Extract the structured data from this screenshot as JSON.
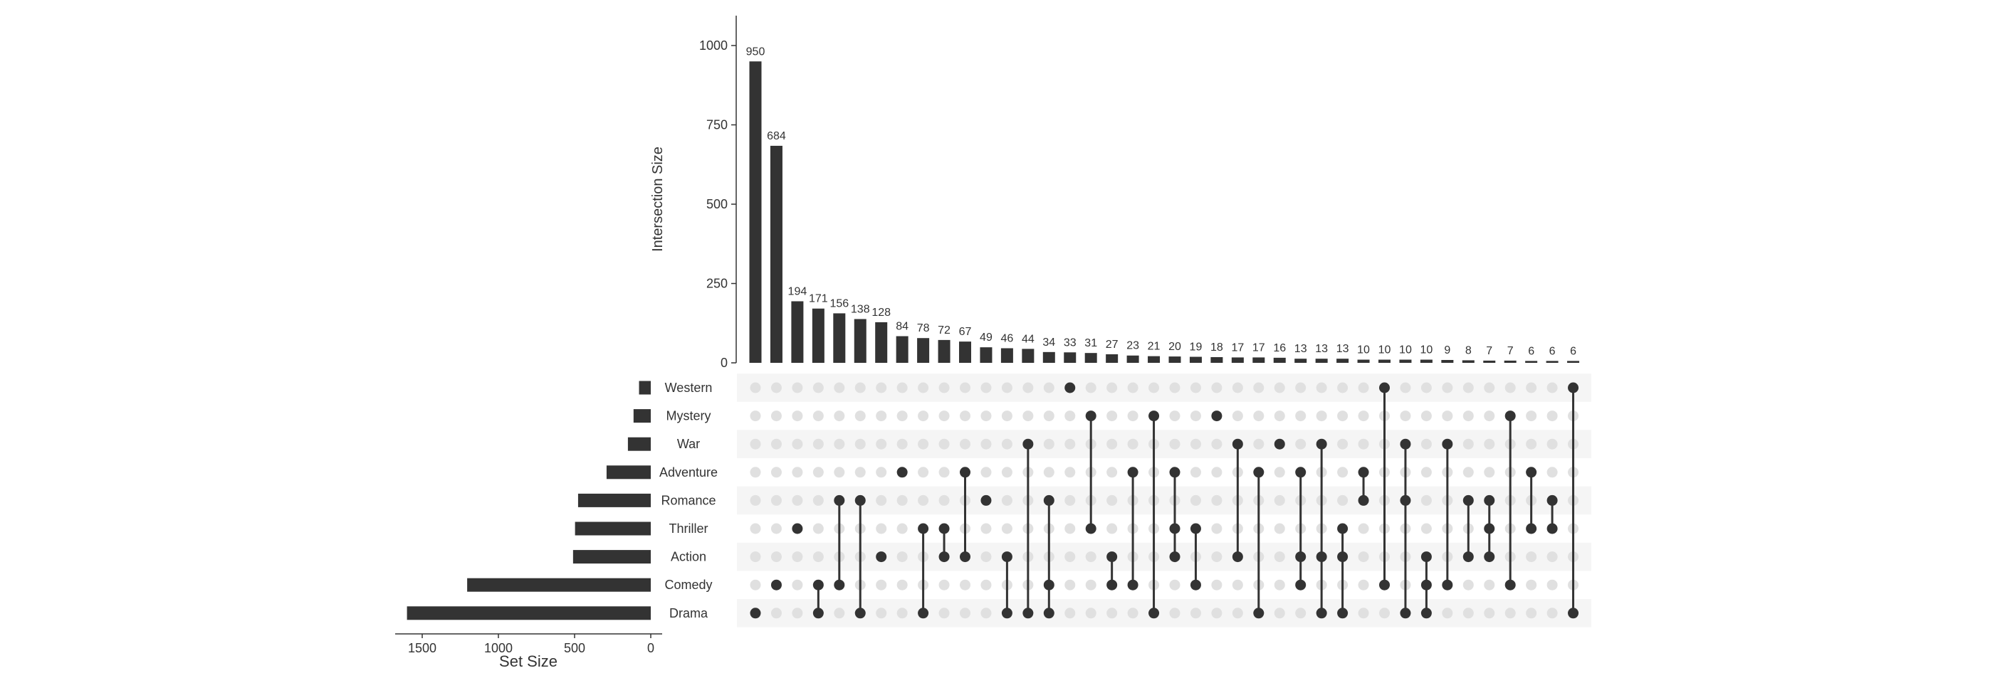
{
  "chart_data": {
    "type": "upset",
    "intersection_axis": {
      "label": "Intersection Size",
      "ticks": [
        0,
        250,
        500,
        750,
        1000
      ],
      "range": [
        0,
        1095
      ]
    },
    "set_axis": {
      "label": "Set Size",
      "ticks": [
        1500,
        1000,
        500,
        0
      ],
      "range": [
        0,
        1680
      ]
    },
    "sets": [
      "Western",
      "Mystery",
      "War",
      "Adventure",
      "Romance",
      "Thriller",
      "Action",
      "Comedy",
      "Drama"
    ],
    "set_sizes": [
      77,
      113,
      150,
      290,
      477,
      497,
      510,
      1205,
      1600
    ],
    "intersections": [
      {
        "sets": [
          "Drama"
        ],
        "size": 950
      },
      {
        "sets": [
          "Comedy"
        ],
        "size": 684
      },
      {
        "sets": [
          "Thriller"
        ],
        "size": 194
      },
      {
        "sets": [
          "Comedy",
          "Drama"
        ],
        "size": 171
      },
      {
        "sets": [
          "Romance",
          "Comedy"
        ],
        "size": 156
      },
      {
        "sets": [
          "Romance",
          "Drama"
        ],
        "size": 138
      },
      {
        "sets": [
          "Action"
        ],
        "size": 128
      },
      {
        "sets": [
          "Adventure"
        ],
        "size": 84
      },
      {
        "sets": [
          "Thriller",
          "Drama"
        ],
        "size": 78
      },
      {
        "sets": [
          "Thriller",
          "Action"
        ],
        "size": 72
      },
      {
        "sets": [
          "Adventure",
          "Action"
        ],
        "size": 67
      },
      {
        "sets": [
          "Romance"
        ],
        "size": 49
      },
      {
        "sets": [
          "Action",
          "Drama"
        ],
        "size": 46
      },
      {
        "sets": [
          "War",
          "Drama"
        ],
        "size": 44
      },
      {
        "sets": [
          "Romance",
          "Comedy",
          "Drama"
        ],
        "size": 34
      },
      {
        "sets": [
          "Western"
        ],
        "size": 33
      },
      {
        "sets": [
          "Mystery",
          "Thriller"
        ],
        "size": 31
      },
      {
        "sets": [
          "Action",
          "Comedy"
        ],
        "size": 27
      },
      {
        "sets": [
          "Adventure",
          "Comedy"
        ],
        "size": 23
      },
      {
        "sets": [
          "Mystery",
          "Drama"
        ],
        "size": 21
      },
      {
        "sets": [
          "Adventure",
          "Thriller",
          "Action"
        ],
        "size": 20
      },
      {
        "sets": [
          "Thriller",
          "Comedy"
        ],
        "size": 19
      },
      {
        "sets": [
          "Mystery"
        ],
        "size": 18
      },
      {
        "sets": [
          "War",
          "Action"
        ],
        "size": 17
      },
      {
        "sets": [
          "Adventure",
          "Drama"
        ],
        "size": 17
      },
      {
        "sets": [
          "War"
        ],
        "size": 16
      },
      {
        "sets": [
          "Adventure",
          "Action",
          "Comedy"
        ],
        "size": 13
      },
      {
        "sets": [
          "War",
          "Action",
          "Drama"
        ],
        "size": 13
      },
      {
        "sets": [
          "Thriller",
          "Action",
          "Drama"
        ],
        "size": 13
      },
      {
        "sets": [
          "Adventure",
          "Romance"
        ],
        "size": 10
      },
      {
        "sets": [
          "Western",
          "Comedy"
        ],
        "size": 10
      },
      {
        "sets": [
          "War",
          "Romance",
          "Drama"
        ],
        "size": 10
      },
      {
        "sets": [
          "Action",
          "Comedy",
          "Drama"
        ],
        "size": 10
      },
      {
        "sets": [
          "War",
          "Comedy"
        ],
        "size": 9
      },
      {
        "sets": [
          "Romance",
          "Action"
        ],
        "size": 8
      },
      {
        "sets": [
          "Romance",
          "Thriller",
          "Action"
        ],
        "size": 7
      },
      {
        "sets": [
          "Mystery",
          "Comedy"
        ],
        "size": 7
      },
      {
        "sets": [
          "Adventure",
          "Thriller"
        ],
        "size": 6
      },
      {
        "sets": [
          "Romance",
          "Thriller"
        ],
        "size": 6
      },
      {
        "sets": [
          "Western",
          "Drama"
        ],
        "size": 6
      }
    ],
    "colors": {
      "bar": "#333333",
      "dot_active": "#333333",
      "dot_inactive": "#e0e0e0",
      "band": "#f5f5f5"
    },
    "grid": false
  }
}
